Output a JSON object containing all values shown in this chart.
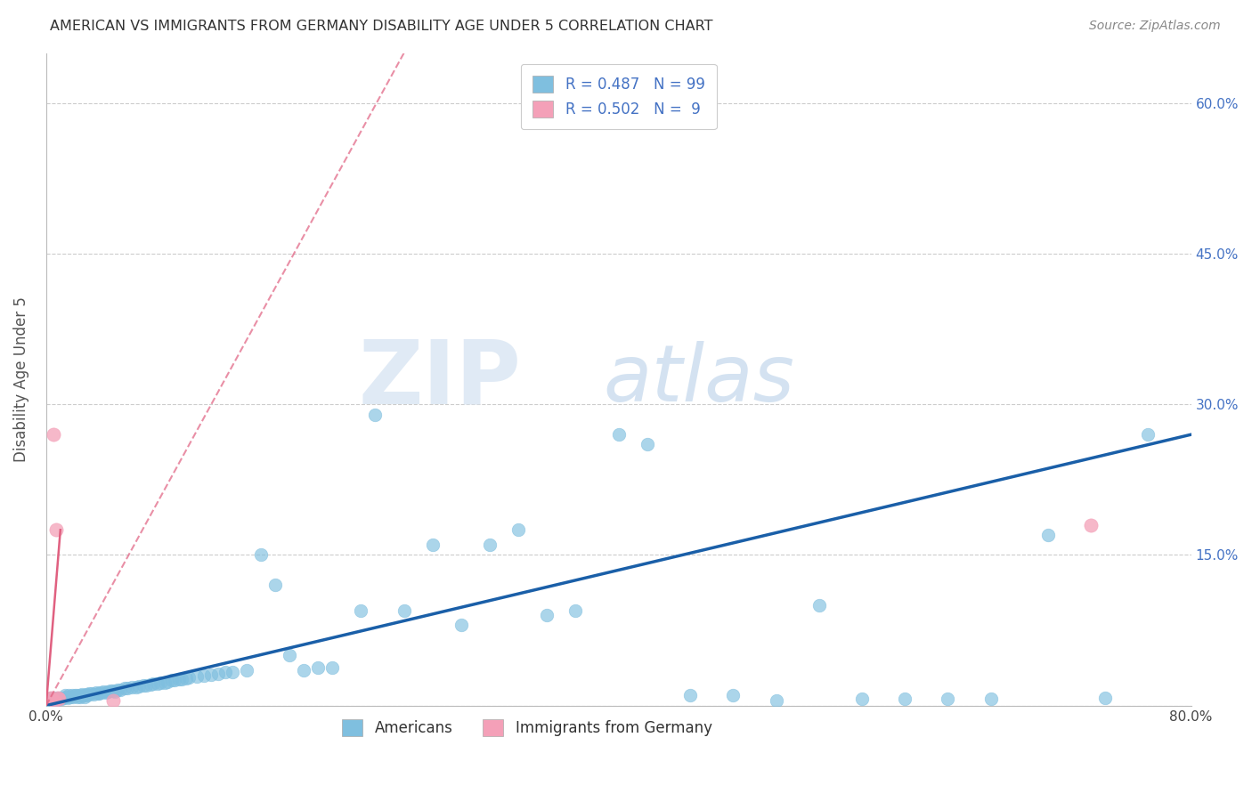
{
  "title": "AMERICAN VS IMMIGRANTS FROM GERMANY DISABILITY AGE UNDER 5 CORRELATION CHART",
  "source": "Source: ZipAtlas.com",
  "ylabel": "Disability Age Under 5",
  "xlim": [
    0.0,
    0.8
  ],
  "ylim": [
    0.0,
    0.65
  ],
  "x_ticks": [
    0.0,
    0.1,
    0.2,
    0.3,
    0.4,
    0.5,
    0.6,
    0.7,
    0.8
  ],
  "y_ticks": [
    0.0,
    0.15,
    0.3,
    0.45,
    0.6
  ],
  "americans_color": "#7fbfdf",
  "germany_color": "#f4a0b8",
  "trendline_americans_color": "#1a5fa8",
  "trendline_germany_color": "#e06080",
  "watermark_zip": "ZIP",
  "watermark_atlas": "atlas",
  "americans_x": [
    0.002,
    0.003,
    0.004,
    0.005,
    0.006,
    0.007,
    0.008,
    0.009,
    0.01,
    0.011,
    0.012,
    0.013,
    0.014,
    0.015,
    0.016,
    0.017,
    0.018,
    0.019,
    0.02,
    0.021,
    0.022,
    0.023,
    0.024,
    0.025,
    0.026,
    0.027,
    0.028,
    0.029,
    0.03,
    0.032,
    0.033,
    0.035,
    0.036,
    0.037,
    0.038,
    0.04,
    0.042,
    0.043,
    0.045,
    0.047,
    0.048,
    0.05,
    0.052,
    0.055,
    0.057,
    0.06,
    0.063,
    0.065,
    0.068,
    0.07,
    0.073,
    0.075,
    0.078,
    0.08,
    0.083,
    0.085,
    0.088,
    0.09,
    0.093,
    0.095,
    0.098,
    0.1,
    0.105,
    0.11,
    0.115,
    0.12,
    0.125,
    0.13,
    0.14,
    0.15,
    0.16,
    0.17,
    0.18,
    0.19,
    0.2,
    0.22,
    0.23,
    0.25,
    0.27,
    0.29,
    0.31,
    0.33,
    0.35,
    0.37,
    0.4,
    0.42,
    0.45,
    0.48,
    0.51,
    0.54,
    0.57,
    0.6,
    0.63,
    0.66,
    0.7,
    0.74,
    0.77
  ],
  "americans_y": [
    0.005,
    0.008,
    0.006,
    0.005,
    0.007,
    0.008,
    0.006,
    0.007,
    0.008,
    0.007,
    0.008,
    0.01,
    0.009,
    0.008,
    0.01,
    0.009,
    0.01,
    0.009,
    0.01,
    0.01,
    0.009,
    0.01,
    0.009,
    0.011,
    0.01,
    0.009,
    0.011,
    0.01,
    0.012,
    0.012,
    0.011,
    0.013,
    0.012,
    0.012,
    0.013,
    0.014,
    0.013,
    0.014,
    0.015,
    0.015,
    0.014,
    0.016,
    0.016,
    0.017,
    0.017,
    0.018,
    0.018,
    0.019,
    0.02,
    0.02,
    0.021,
    0.022,
    0.022,
    0.023,
    0.023,
    0.024,
    0.025,
    0.025,
    0.026,
    0.026,
    0.027,
    0.028,
    0.029,
    0.03,
    0.031,
    0.032,
    0.033,
    0.033,
    0.035,
    0.15,
    0.12,
    0.05,
    0.035,
    0.038,
    0.038,
    0.095,
    0.29,
    0.095,
    0.16,
    0.08,
    0.16,
    0.175,
    0.09,
    0.095,
    0.27,
    0.26,
    0.01,
    0.01,
    0.005,
    0.1,
    0.007,
    0.007,
    0.007,
    0.007,
    0.17,
    0.008,
    0.27
  ],
  "germany_x": [
    0.003,
    0.004,
    0.005,
    0.006,
    0.007,
    0.008,
    0.009,
    0.047,
    0.73
  ],
  "germany_y": [
    0.008,
    0.007,
    0.27,
    0.005,
    0.175,
    0.008,
    0.007,
    0.005,
    0.18
  ],
  "trend_a_x0": 0.0,
  "trend_a_x1": 0.8,
  "trend_a_y0": 0.0,
  "trend_a_y1": 0.27,
  "trend_g_solid_x0": 0.0,
  "trend_g_solid_x1": 0.01,
  "trend_g_solid_y0": 0.0,
  "trend_g_solid_y1": 0.175,
  "trend_g_dash_x0": 0.0,
  "trend_g_dash_x1": 0.25,
  "trend_g_dash_y0": 0.0,
  "trend_g_dash_y1": 0.65
}
